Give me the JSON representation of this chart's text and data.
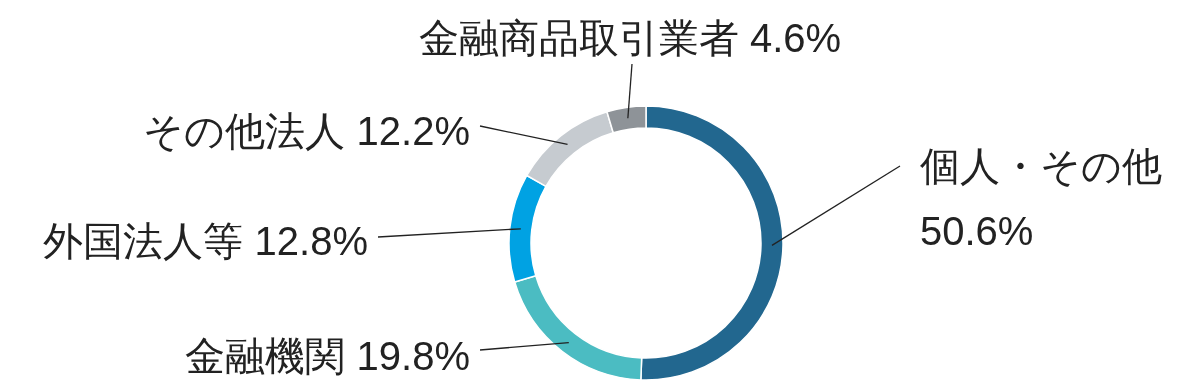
{
  "chart_data": {
    "type": "donut",
    "categories": [
      "個人・その他",
      "金融機関",
      "外国法人等",
      "その他法人",
      "金融商品取引業者"
    ],
    "values": [
      50.6,
      19.8,
      12.8,
      12.2,
      4.6
    ],
    "value_labels": [
      "50.6%",
      "19.8%",
      "12.8%",
      "12.2%",
      "4.6%"
    ],
    "colors": [
      "#22678f",
      "#4bbcc2",
      "#00a2e3",
      "#c6cbd0",
      "#8e9398"
    ]
  }
}
